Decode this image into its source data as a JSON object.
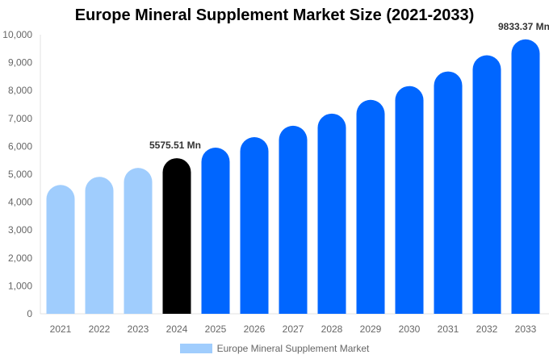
{
  "chart_data": {
    "type": "bar",
    "title": "Europe Mineral Supplement Market Size (2021-2033)",
    "categories": [
      "2021",
      "2022",
      "2023",
      "2024",
      "2025",
      "2026",
      "2027",
      "2028",
      "2029",
      "2030",
      "2031",
      "2032",
      "2033"
    ],
    "series": [
      {
        "name": "Europe Mineral Supplement Market",
        "values": [
          4617,
          4907,
          5226,
          5575.51,
          5952,
          6330,
          6736,
          7172,
          7665,
          8159,
          8682,
          9262,
          9833.37
        ]
      }
    ],
    "ylim": [
      0,
      10000
    ],
    "yticks": [
      0,
      1000,
      2000,
      3000,
      4000,
      5000,
      6000,
      7000,
      8000,
      9000,
      10000
    ],
    "ytick_labels": [
      "0",
      "1,000",
      "2,000",
      "3,000",
      "4,000",
      "5,000",
      "6,000",
      "7,000",
      "8,000",
      "9,000",
      "10,000"
    ],
    "data_labels": [
      {
        "category": "2024",
        "text": "5575.51 Mn"
      },
      {
        "category": "2033",
        "text": "9833.37 Mn"
      }
    ],
    "bar_colors": [
      "#a0cdfd",
      "#a0cdfd",
      "#a0cdfd",
      "#000000",
      "#0066ff",
      "#0066ff",
      "#0066ff",
      "#0066ff",
      "#0066ff",
      "#0066ff",
      "#0066ff",
      "#0066ff",
      "#0066ff"
    ],
    "legend": {
      "position": "bottom",
      "label": "Europe Mineral Supplement Market",
      "color": "#a0cdfd"
    },
    "grid": false
  }
}
